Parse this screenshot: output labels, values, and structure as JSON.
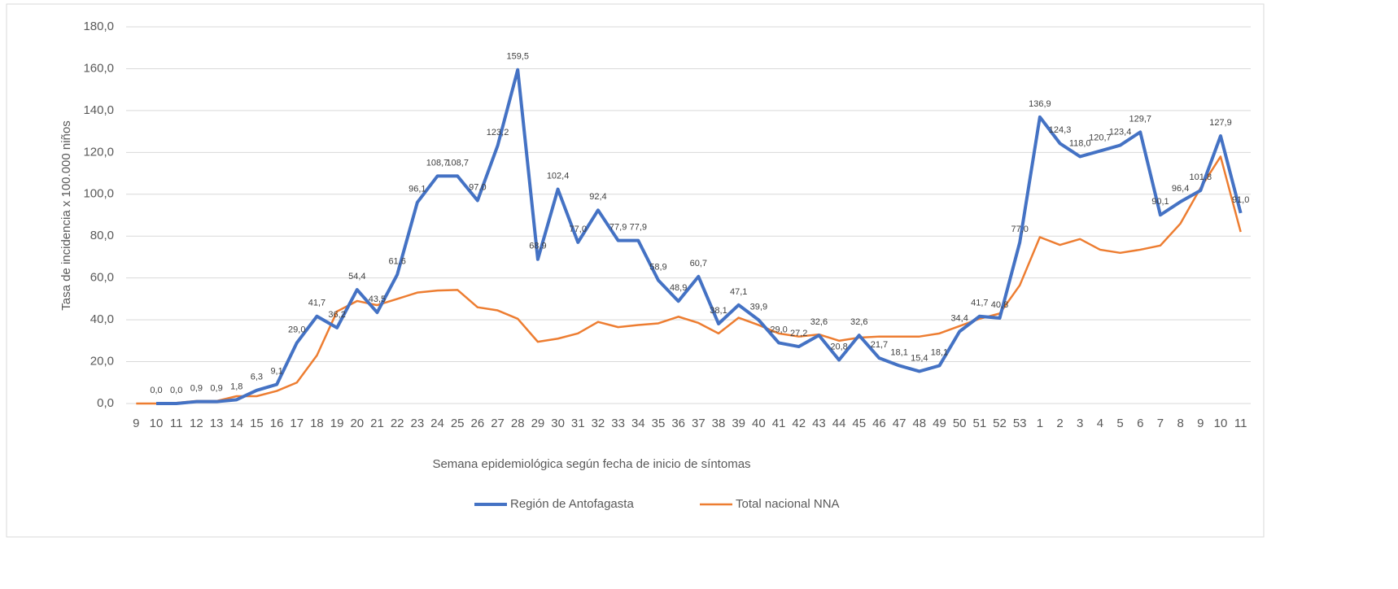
{
  "chart_data": {
    "type": "line",
    "y_label": "Tasa de incidencia x 100.000 niños",
    "x_label": "Semana epidemiológica según fecha de inicio de síntomas",
    "categories": [
      "9",
      "10",
      "11",
      "12",
      "13",
      "14",
      "15",
      "16",
      "17",
      "18",
      "19",
      "20",
      "21",
      "22",
      "23",
      "24",
      "25",
      "26",
      "27",
      "28",
      "29",
      "30",
      "31",
      "32",
      "33",
      "34",
      "35",
      "36",
      "37",
      "38",
      "39",
      "40",
      "41",
      "42",
      "43",
      "44",
      "45",
      "46",
      "47",
      "48",
      "49",
      "50",
      "51",
      "52",
      "53",
      "1",
      "2",
      "3",
      "4",
      "5",
      "6",
      "7",
      "8",
      "9",
      "10",
      "11"
    ],
    "series": [
      {
        "name": "Región de Antofagasta",
        "color": "#4472c4",
        "values": [
          null,
          0.0,
          0.0,
          0.9,
          0.9,
          1.8,
          6.3,
          9.1,
          29.0,
          41.7,
          36.2,
          54.4,
          43.5,
          61.6,
          96.1,
          108.7,
          108.7,
          97.0,
          123.2,
          159.5,
          68.9,
          102.4,
          77.0,
          92.4,
          77.9,
          77.9,
          58.9,
          48.9,
          60.7,
          38.1,
          47.1,
          39.9,
          29.0,
          27.2,
          32.6,
          20.8,
          32.6,
          21.7,
          18.1,
          15.4,
          18.1,
          34.4,
          41.7,
          40.8,
          77.0,
          136.9,
          124.3,
          118.0,
          120.7,
          123.4,
          129.7,
          90.1,
          96.4,
          101.8,
          127.9,
          91.0
        ],
        "value_labels": [
          null,
          "0,0",
          "0,0",
          "0,9",
          "0,9",
          "1,8",
          "6,3",
          "9,1",
          "29,0",
          "41,7",
          "36,2",
          "54,4",
          "43,5",
          "61,6",
          "96,1",
          "108,7",
          "108,7",
          "97,0",
          "123,2",
          "159,5",
          "68,9",
          "102,4",
          "77,0",
          "92,4",
          "77,9",
          "77,9",
          "58,9",
          "48,9",
          "60,7",
          "38,1",
          "47,1",
          "39,9",
          "29,0",
          "27,2",
          "32,6",
          "20,8",
          "32,6",
          "21,7",
          "18,1",
          "15,4",
          "18,1",
          "34,4",
          "41,7",
          "40,8",
          "77,0",
          "136,9",
          "124,3",
          "118,0",
          "120,7",
          "123,4",
          "129,7",
          "90,1",
          "96,4",
          "101,8",
          "127,9",
          "91,0"
        ]
      },
      {
        "name": "Total nacional NNA",
        "color": "#ed7d31",
        "values": [
          0,
          0,
          0.3,
          1.2,
          1.2,
          3.5,
          3.5,
          6,
          10,
          23,
          44,
          49,
          47,
          50,
          53,
          54,
          54.3,
          46,
          44.5,
          40.5,
          29.5,
          31,
          33.5,
          39,
          36.5,
          37.5,
          38.3,
          41.5,
          38.5,
          33.5,
          41,
          37.5,
          33.5,
          32,
          33,
          30,
          31.5,
          32,
          32,
          32,
          33.5,
          37,
          40.5,
          43,
          56.5,
          79.5,
          75.8,
          78.6,
          73.5,
          72,
          73.5,
          75.5,
          86,
          103,
          118,
          82
        ]
      }
    ],
    "ylim": [
      0,
      180
    ],
    "yticks": [
      {
        "value": 0,
        "label": "0,0"
      },
      {
        "value": 20,
        "label": "20,0"
      },
      {
        "value": 40,
        "label": "40,0"
      },
      {
        "value": 60,
        "label": "60,0"
      },
      {
        "value": 80,
        "label": "80,0"
      },
      {
        "value": 100,
        "label": "100,0"
      },
      {
        "value": 120,
        "label": "120,0"
      },
      {
        "value": 140,
        "label": "140,0"
      },
      {
        "value": 160,
        "label": "160,0"
      },
      {
        "value": 180,
        "label": "180,0"
      }
    ],
    "grid": true,
    "legend": "bottom"
  }
}
